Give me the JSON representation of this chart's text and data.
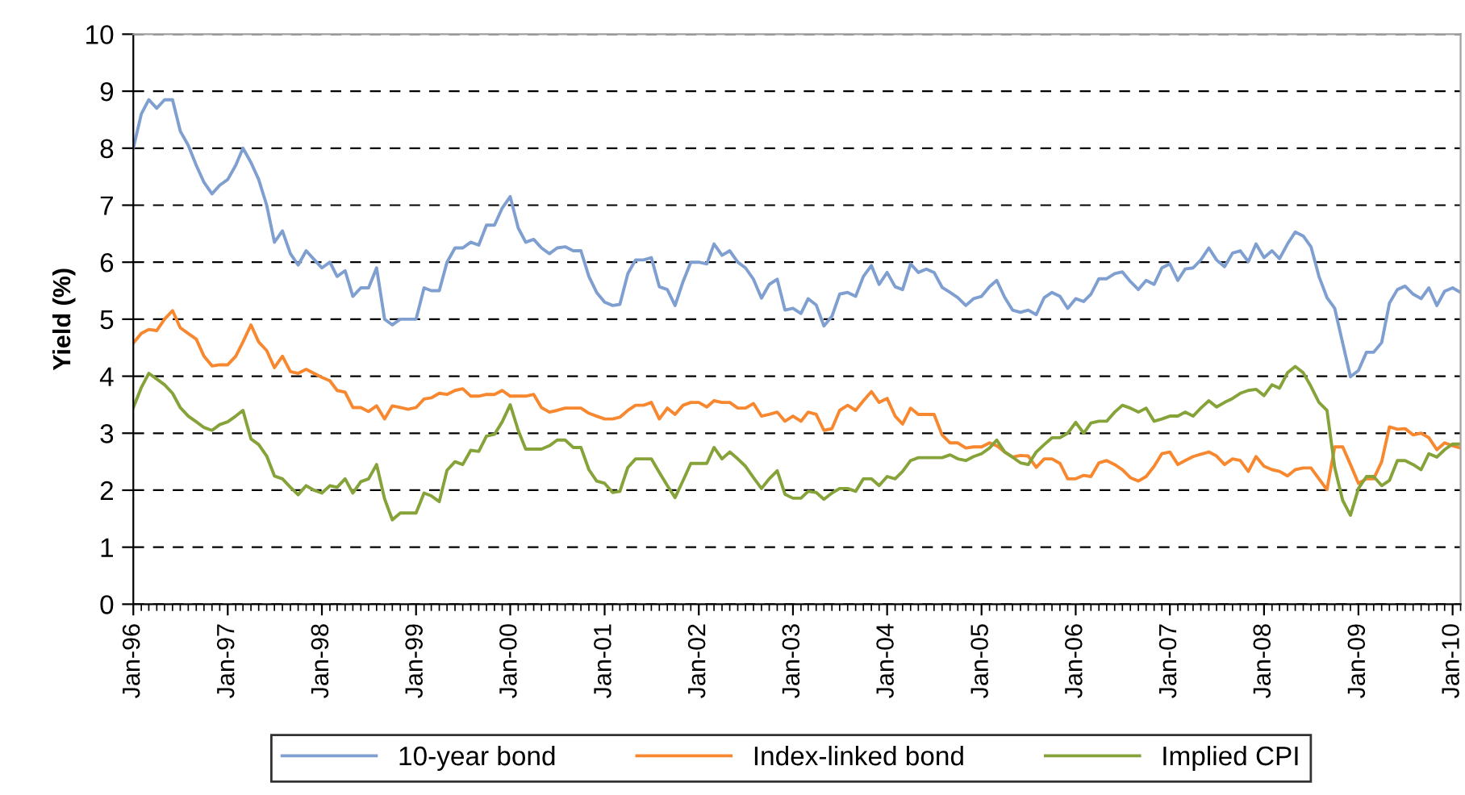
{
  "chart_data": {
    "type": "line",
    "ylabel": "Yield (%)",
    "x": [
      "1996-01",
      "1996-02",
      "1996-03",
      "1996-04",
      "1996-05",
      "1996-06",
      "1996-07",
      "1996-08",
      "1996-09",
      "1996-10",
      "1996-11",
      "1996-12",
      "1997-01",
      "1997-02",
      "1997-03",
      "1997-04",
      "1997-05",
      "1997-06",
      "1997-07",
      "1997-08",
      "1997-09",
      "1997-10",
      "1997-11",
      "1997-12",
      "1998-01",
      "1998-02",
      "1998-03",
      "1998-04",
      "1998-05",
      "1998-06",
      "1998-07",
      "1998-08",
      "1998-09",
      "1998-10",
      "1998-11",
      "1998-12",
      "1999-01",
      "1999-02",
      "1999-03",
      "1999-04",
      "1999-05",
      "1999-06",
      "1999-07",
      "1999-08",
      "1999-09",
      "1999-10",
      "1999-11",
      "1999-12",
      "2000-01",
      "2000-02",
      "2000-03",
      "2000-04",
      "2000-05",
      "2000-06",
      "2000-07",
      "2000-08",
      "2000-09",
      "2000-10",
      "2000-11",
      "2000-12",
      "2001-01",
      "2001-02",
      "2001-03",
      "2001-04",
      "2001-05",
      "2001-06",
      "2001-07",
      "2001-08",
      "2001-09",
      "2001-10",
      "2001-11",
      "2001-12",
      "2002-01",
      "2002-02",
      "2002-03",
      "2002-04",
      "2002-05",
      "2002-06",
      "2002-07",
      "2002-08",
      "2002-09",
      "2002-10",
      "2002-11",
      "2002-12",
      "2003-01",
      "2003-02",
      "2003-03",
      "2003-04",
      "2003-05",
      "2003-06",
      "2003-07",
      "2003-08",
      "2003-09",
      "2003-10",
      "2003-11",
      "2003-12",
      "2004-01",
      "2004-02",
      "2004-03",
      "2004-04",
      "2004-05",
      "2004-06",
      "2004-07",
      "2004-08",
      "2004-09",
      "2004-10",
      "2004-11",
      "2004-12",
      "2005-01",
      "2005-02",
      "2005-03",
      "2005-04",
      "2005-05",
      "2005-06",
      "2005-07",
      "2005-08",
      "2005-09",
      "2005-10",
      "2005-11",
      "2005-12",
      "2006-01",
      "2006-02",
      "2006-03",
      "2006-04",
      "2006-05",
      "2006-06",
      "2006-07",
      "2006-08",
      "2006-09",
      "2006-10",
      "2006-11",
      "2006-12",
      "2007-01",
      "2007-02",
      "2007-03",
      "2007-04",
      "2007-05",
      "2007-06",
      "2007-07",
      "2007-08",
      "2007-09",
      "2007-10",
      "2007-11",
      "2007-12",
      "2008-01",
      "2008-02",
      "2008-03",
      "2008-04",
      "2008-05",
      "2008-06",
      "2008-07",
      "2008-08",
      "2008-09",
      "2008-10",
      "2008-11",
      "2008-12",
      "2009-01",
      "2009-02",
      "2009-03",
      "2009-04",
      "2009-05",
      "2009-06",
      "2009-07",
      "2009-08",
      "2009-09",
      "2009-10",
      "2009-11",
      "2009-12",
      "2010-01",
      "2010-02"
    ],
    "series": [
      {
        "name": "10-year bond",
        "color": "#7f9fd0",
        "values": [
          8.0,
          8.6,
          8.85,
          8.7,
          8.85,
          8.85,
          8.3,
          8.05,
          7.7,
          7.4,
          7.2,
          7.35,
          7.45,
          7.7,
          8.0,
          7.75,
          7.45,
          7.0,
          6.35,
          6.55,
          6.15,
          5.95,
          6.2,
          6.05,
          5.9,
          6.0,
          5.75,
          5.85,
          5.4,
          5.55,
          5.55,
          5.9,
          5.0,
          4.9,
          5.0,
          5.0,
          5.0,
          5.55,
          5.5,
          5.5,
          6.0,
          6.25,
          6.25,
          6.35,
          6.3,
          6.65,
          6.65,
          6.95,
          7.15,
          6.6,
          6.35,
          6.4,
          6.25,
          6.15,
          6.25,
          6.27,
          6.2,
          6.2,
          5.75,
          5.47,
          5.3,
          5.24,
          5.26,
          5.8,
          6.04,
          6.04,
          6.08,
          5.57,
          5.52,
          5.24,
          5.66,
          6.0,
          6.0,
          5.97,
          6.32,
          6.12,
          6.2,
          6.0,
          5.9,
          5.7,
          5.37,
          5.61,
          5.7,
          5.16,
          5.19,
          5.1,
          5.36,
          5.25,
          4.88,
          5.05,
          5.44,
          5.47,
          5.4,
          5.75,
          5.94,
          5.61,
          5.82,
          5.57,
          5.52,
          5.97,
          5.82,
          5.88,
          5.82,
          5.56,
          5.47,
          5.38,
          5.24,
          5.36,
          5.4,
          5.57,
          5.68,
          5.38,
          5.16,
          5.12,
          5.16,
          5.08,
          5.38,
          5.47,
          5.4,
          5.19,
          5.36,
          5.31,
          5.44,
          5.71,
          5.71,
          5.8,
          5.83,
          5.66,
          5.52,
          5.68,
          5.61,
          5.9,
          5.97,
          5.68,
          5.88,
          5.9,
          6.04,
          6.25,
          6.04,
          5.92,
          6.16,
          6.2,
          6.01,
          6.32,
          6.08,
          6.2,
          6.06,
          6.32,
          6.53,
          6.46,
          6.27,
          5.75,
          5.38,
          5.19,
          4.58,
          3.99,
          4.1,
          4.42,
          4.42,
          4.59,
          5.28,
          5.52,
          5.58,
          5.44,
          5.36,
          5.55,
          5.24,
          5.49,
          5.55,
          5.47
        ]
      },
      {
        "name": "Index-linked bond",
        "color": "#f7882f",
        "values": [
          4.58,
          4.75,
          4.82,
          4.8,
          5.0,
          5.15,
          4.85,
          4.75,
          4.65,
          4.35,
          4.18,
          4.2,
          4.2,
          4.35,
          4.6,
          4.9,
          4.6,
          4.45,
          4.15,
          4.35,
          4.08,
          4.05,
          4.12,
          4.05,
          3.98,
          3.92,
          3.75,
          3.72,
          3.45,
          3.45,
          3.38,
          3.48,
          3.25,
          3.48,
          3.45,
          3.42,
          3.45,
          3.6,
          3.62,
          3.7,
          3.68,
          3.75,
          3.78,
          3.65,
          3.65,
          3.68,
          3.68,
          3.75,
          3.65,
          3.65,
          3.65,
          3.68,
          3.45,
          3.37,
          3.4,
          3.44,
          3.44,
          3.44,
          3.35,
          3.3,
          3.25,
          3.25,
          3.28,
          3.4,
          3.49,
          3.49,
          3.54,
          3.25,
          3.44,
          3.33,
          3.49,
          3.54,
          3.54,
          3.46,
          3.57,
          3.54,
          3.54,
          3.44,
          3.44,
          3.52,
          3.3,
          3.33,
          3.37,
          3.21,
          3.3,
          3.21,
          3.37,
          3.33,
          3.05,
          3.08,
          3.4,
          3.49,
          3.4,
          3.57,
          3.73,
          3.54,
          3.61,
          3.3,
          3.16,
          3.44,
          3.33,
          3.33,
          3.33,
          2.97,
          2.83,
          2.83,
          2.74,
          2.76,
          2.76,
          2.83,
          2.78,
          2.67,
          2.58,
          2.61,
          2.6,
          2.4,
          2.55,
          2.55,
          2.47,
          2.2,
          2.2,
          2.26,
          2.24,
          2.48,
          2.52,
          2.45,
          2.36,
          2.22,
          2.16,
          2.24,
          2.42,
          2.64,
          2.67,
          2.45,
          2.52,
          2.59,
          2.63,
          2.67,
          2.6,
          2.45,
          2.55,
          2.52,
          2.33,
          2.59,
          2.42,
          2.36,
          2.33,
          2.25,
          2.36,
          2.39,
          2.39,
          2.2,
          2.01,
          2.76,
          2.76,
          2.45,
          2.12,
          2.2,
          2.2,
          2.5,
          3.11,
          3.07,
          3.08,
          2.97,
          3.0,
          2.92,
          2.71,
          2.83,
          2.78,
          2.74
        ]
      },
      {
        "name": "Implied CPI",
        "color": "#86a33a",
        "values": [
          3.45,
          3.8,
          4.05,
          3.95,
          3.85,
          3.7,
          3.45,
          3.3,
          3.2,
          3.1,
          3.05,
          3.15,
          3.2,
          3.3,
          3.4,
          2.9,
          2.8,
          2.6,
          2.25,
          2.2,
          2.05,
          1.92,
          2.08,
          2.0,
          1.95,
          2.08,
          2.05,
          2.2,
          1.95,
          2.15,
          2.2,
          2.45,
          1.85,
          1.48,
          1.6,
          1.6,
          1.6,
          1.95,
          1.9,
          1.8,
          2.35,
          2.5,
          2.45,
          2.7,
          2.68,
          2.95,
          2.98,
          3.2,
          3.5,
          3.05,
          2.72,
          2.72,
          2.72,
          2.78,
          2.88,
          2.88,
          2.75,
          2.75,
          2.36,
          2.16,
          2.12,
          1.96,
          1.98,
          2.4,
          2.55,
          2.55,
          2.55,
          2.31,
          2.08,
          1.87,
          2.17,
          2.47,
          2.47,
          2.47,
          2.75,
          2.55,
          2.67,
          2.55,
          2.42,
          2.22,
          2.03,
          2.2,
          2.34,
          1.93,
          1.86,
          1.86,
          1.98,
          1.96,
          1.84,
          1.95,
          2.03,
          2.03,
          1.98,
          2.2,
          2.2,
          2.08,
          2.24,
          2.2,
          2.33,
          2.52,
          2.57,
          2.57,
          2.57,
          2.57,
          2.62,
          2.55,
          2.52,
          2.59,
          2.64,
          2.74,
          2.88,
          2.67,
          2.58,
          2.48,
          2.45,
          2.67,
          2.8,
          2.92,
          2.92,
          3.0,
          3.19,
          3.0,
          3.18,
          3.21,
          3.21,
          3.37,
          3.49,
          3.44,
          3.37,
          3.44,
          3.21,
          3.25,
          3.3,
          3.3,
          3.37,
          3.3,
          3.44,
          3.57,
          3.46,
          3.54,
          3.61,
          3.7,
          3.75,
          3.77,
          3.66,
          3.85,
          3.79,
          4.06,
          4.17,
          4.06,
          3.82,
          3.54,
          3.4,
          2.4,
          1.82,
          1.56,
          2.03,
          2.24,
          2.24,
          2.08,
          2.17,
          2.52,
          2.52,
          2.45,
          2.36,
          2.64,
          2.58,
          2.71,
          2.81,
          2.81
        ]
      }
    ],
    "xlim": [
      "1996-01",
      "2010-02"
    ],
    "xticks": [
      {
        "value": "1996-01",
        "label": "Jan-96"
      },
      {
        "value": "1997-01",
        "label": "Jan-97"
      },
      {
        "value": "1998-01",
        "label": "Jan-98"
      },
      {
        "value": "1999-01",
        "label": "Jan-99"
      },
      {
        "value": "2000-01",
        "label": "Jan-00"
      },
      {
        "value": "2001-01",
        "label": "Jan-01"
      },
      {
        "value": "2002-01",
        "label": "Jan-02"
      },
      {
        "value": "2003-01",
        "label": "Jan-03"
      },
      {
        "value": "2004-01",
        "label": "Jan-04"
      },
      {
        "value": "2005-01",
        "label": "Jan-05"
      },
      {
        "value": "2006-01",
        "label": "Jan-06"
      },
      {
        "value": "2007-01",
        "label": "Jan-07"
      },
      {
        "value": "2008-01",
        "label": "Jan-08"
      },
      {
        "value": "2009-01",
        "label": "Jan-09"
      },
      {
        "value": "2010-01",
        "label": "Jan-10"
      }
    ],
    "ylim": [
      0,
      10
    ],
    "yticks": [
      0,
      1,
      2,
      3,
      4,
      5,
      6,
      7,
      8,
      9,
      10
    ],
    "grid": "y",
    "legend": "bottom",
    "marker": "none",
    "line_style": "solid"
  }
}
